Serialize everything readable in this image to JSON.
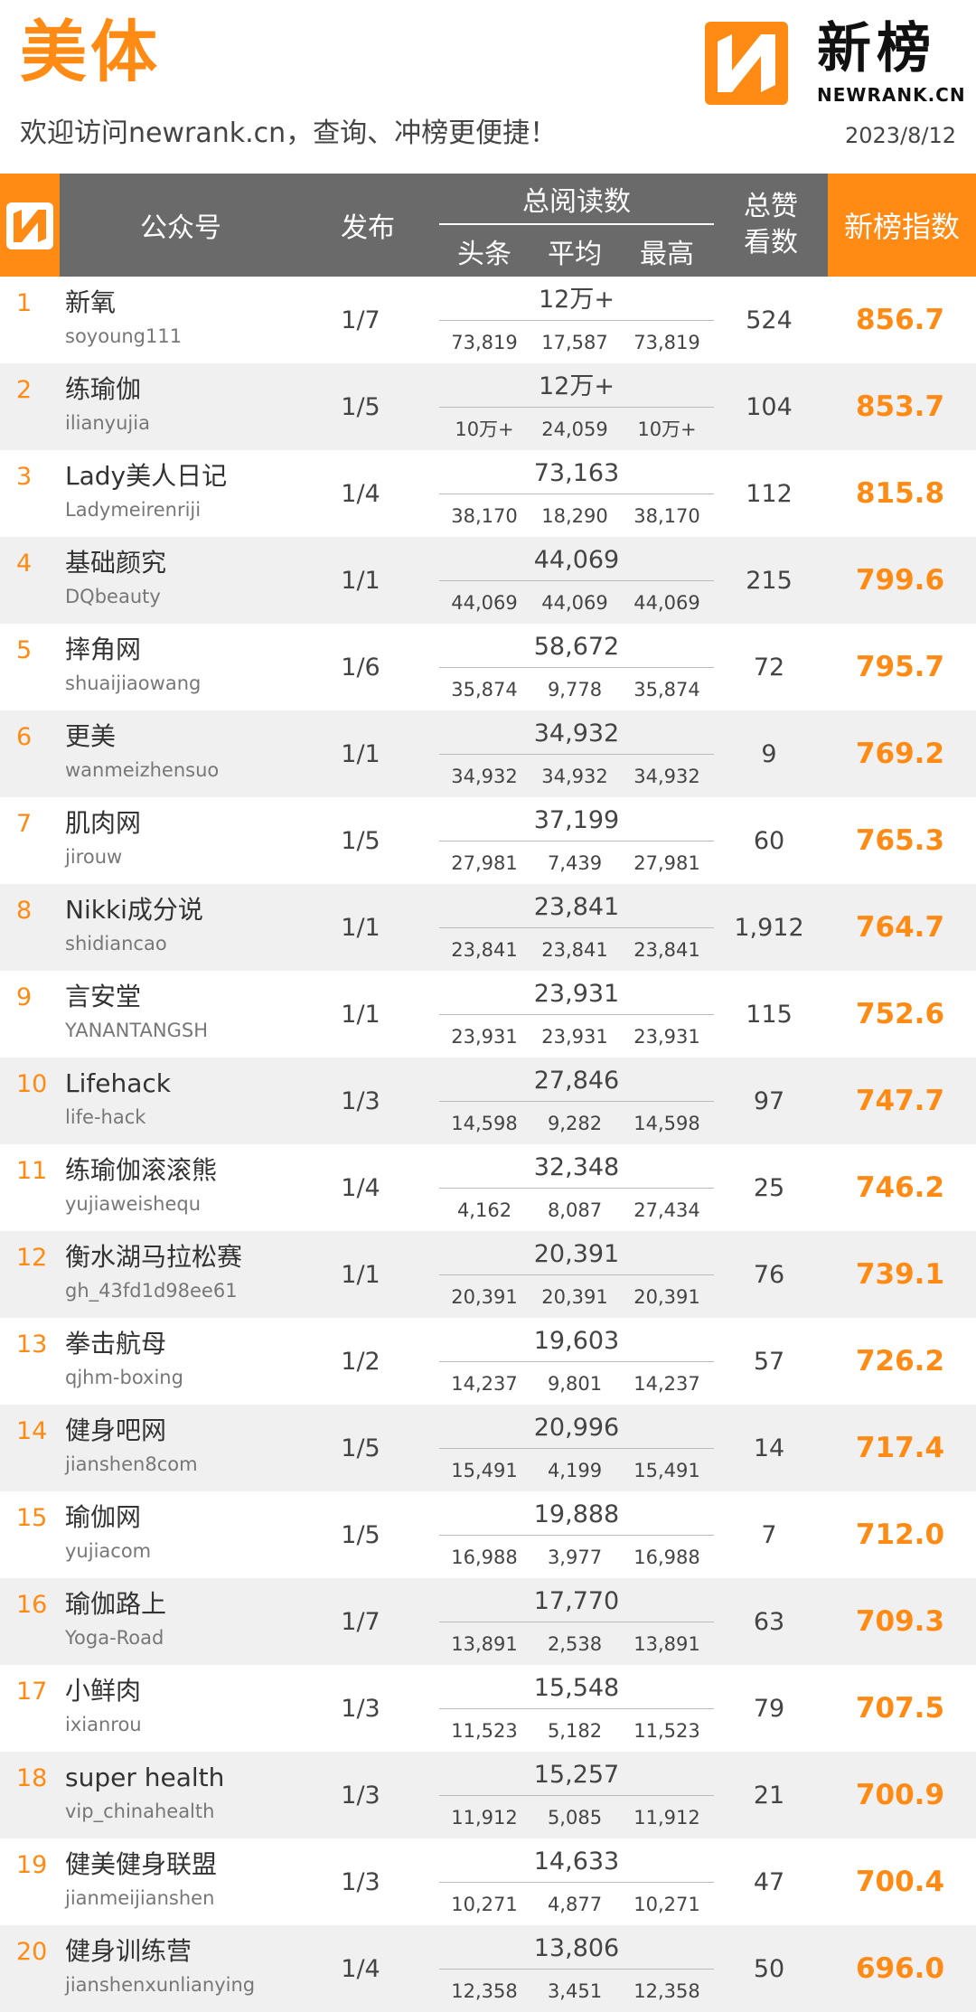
{
  "header": {
    "title": "美体",
    "subtitle": "欢迎访问newrank.cn，查询、冲榜更便捷！",
    "date": "2023/8/12",
    "brand_cn": "新榜",
    "brand_en": "NEWRANK.CN"
  },
  "columns": {
    "account": "公众号",
    "publish": "发布",
    "total_reads": "总阅读数",
    "headline": "头条",
    "average": "平均",
    "max": "最高",
    "likes_line1": "总赞",
    "likes_line2": "看数",
    "index": "新榜指数"
  },
  "colors": {
    "accent": "#ff8a14",
    "header_gray": "#6a6a6a",
    "row_alt": "#f0f0f0"
  },
  "rows": [
    {
      "rank": "1",
      "name": "新氧",
      "account": "soyoung111",
      "publish": "1/7",
      "total": "12万+",
      "headline": "73,819",
      "avg": "17,587",
      "max": "73,819",
      "likes": "524",
      "score": "856.7"
    },
    {
      "rank": "2",
      "name": "练瑜伽",
      "account": "ilianyujia",
      "publish": "1/5",
      "total": "12万+",
      "headline": "10万+",
      "avg": "24,059",
      "max": "10万+",
      "likes": "104",
      "score": "853.7"
    },
    {
      "rank": "3",
      "name": "Lady美人日记",
      "account": "Ladymeirenriji",
      "publish": "1/4",
      "total": "73,163",
      "headline": "38,170",
      "avg": "18,290",
      "max": "38,170",
      "likes": "112",
      "score": "815.8"
    },
    {
      "rank": "4",
      "name": "基础颜究",
      "account": "DQbeauty",
      "publish": "1/1",
      "total": "44,069",
      "headline": "44,069",
      "avg": "44,069",
      "max": "44,069",
      "likes": "215",
      "score": "799.6"
    },
    {
      "rank": "5",
      "name": "摔角网",
      "account": "shuaijiaowang",
      "publish": "1/6",
      "total": "58,672",
      "headline": "35,874",
      "avg": "9,778",
      "max": "35,874",
      "likes": "72",
      "score": "795.7"
    },
    {
      "rank": "6",
      "name": "更美",
      "account": "wanmeizhensuo",
      "publish": "1/1",
      "total": "34,932",
      "headline": "34,932",
      "avg": "34,932",
      "max": "34,932",
      "likes": "9",
      "score": "769.2"
    },
    {
      "rank": "7",
      "name": "肌肉网",
      "account": "jirouw",
      "publish": "1/5",
      "total": "37,199",
      "headline": "27,981",
      "avg": "7,439",
      "max": "27,981",
      "likes": "60",
      "score": "765.3"
    },
    {
      "rank": "8",
      "name": "Nikki成分说",
      "account": "shidiancao",
      "publish": "1/1",
      "total": "23,841",
      "headline": "23,841",
      "avg": "23,841",
      "max": "23,841",
      "likes": "1,912",
      "score": "764.7"
    },
    {
      "rank": "9",
      "name": "言安堂",
      "account": "YANANTANGSH",
      "publish": "1/1",
      "total": "23,931",
      "headline": "23,931",
      "avg": "23,931",
      "max": "23,931",
      "likes": "115",
      "score": "752.6"
    },
    {
      "rank": "10",
      "name": "Lifehack",
      "account": "life-hack",
      "publish": "1/3",
      "total": "27,846",
      "headline": "14,598",
      "avg": "9,282",
      "max": "14,598",
      "likes": "97",
      "score": "747.7"
    },
    {
      "rank": "11",
      "name": "练瑜伽滚滚熊",
      "account": "yujiaweishequ",
      "publish": "1/4",
      "total": "32,348",
      "headline": "4,162",
      "avg": "8,087",
      "max": "27,434",
      "likes": "25",
      "score": "746.2"
    },
    {
      "rank": "12",
      "name": "衡水湖马拉松赛",
      "account": "gh_43fd1d98ee61",
      "publish": "1/1",
      "total": "20,391",
      "headline": "20,391",
      "avg": "20,391",
      "max": "20,391",
      "likes": "76",
      "score": "739.1"
    },
    {
      "rank": "13",
      "name": "拳击航母",
      "account": "qjhm-boxing",
      "publish": "1/2",
      "total": "19,603",
      "headline": "14,237",
      "avg": "9,801",
      "max": "14,237",
      "likes": "57",
      "score": "726.2"
    },
    {
      "rank": "14",
      "name": "健身吧网",
      "account": "jianshen8com",
      "publish": "1/5",
      "total": "20,996",
      "headline": "15,491",
      "avg": "4,199",
      "max": "15,491",
      "likes": "14",
      "score": "717.4"
    },
    {
      "rank": "15",
      "name": "瑜伽网",
      "account": "yujiacom",
      "publish": "1/5",
      "total": "19,888",
      "headline": "16,988",
      "avg": "3,977",
      "max": "16,988",
      "likes": "7",
      "score": "712.0"
    },
    {
      "rank": "16",
      "name": "瑜伽路上",
      "account": "Yoga-Road",
      "publish": "1/7",
      "total": "17,770",
      "headline": "13,891",
      "avg": "2,538",
      "max": "13,891",
      "likes": "63",
      "score": "709.3"
    },
    {
      "rank": "17",
      "name": "小鲜肉",
      "account": "ixianrou",
      "publish": "1/3",
      "total": "15,548",
      "headline": "11,523",
      "avg": "5,182",
      "max": "11,523",
      "likes": "79",
      "score": "707.5"
    },
    {
      "rank": "18",
      "name": "super health",
      "account": "vip_chinahealth",
      "publish": "1/3",
      "total": "15,257",
      "headline": "11,912",
      "avg": "5,085",
      "max": "11,912",
      "likes": "21",
      "score": "700.9"
    },
    {
      "rank": "19",
      "name": "健美健身联盟",
      "account": "jianmeijianshen",
      "publish": "1/3",
      "total": "14,633",
      "headline": "10,271",
      "avg": "4,877",
      "max": "10,271",
      "likes": "47",
      "score": "700.4"
    },
    {
      "rank": "20",
      "name": "健身训练营",
      "account": "jianshenxunlianying",
      "publish": "1/4",
      "total": "13,806",
      "headline": "12,358",
      "avg": "3,451",
      "max": "12,358",
      "likes": "50",
      "score": "696.0"
    }
  ]
}
